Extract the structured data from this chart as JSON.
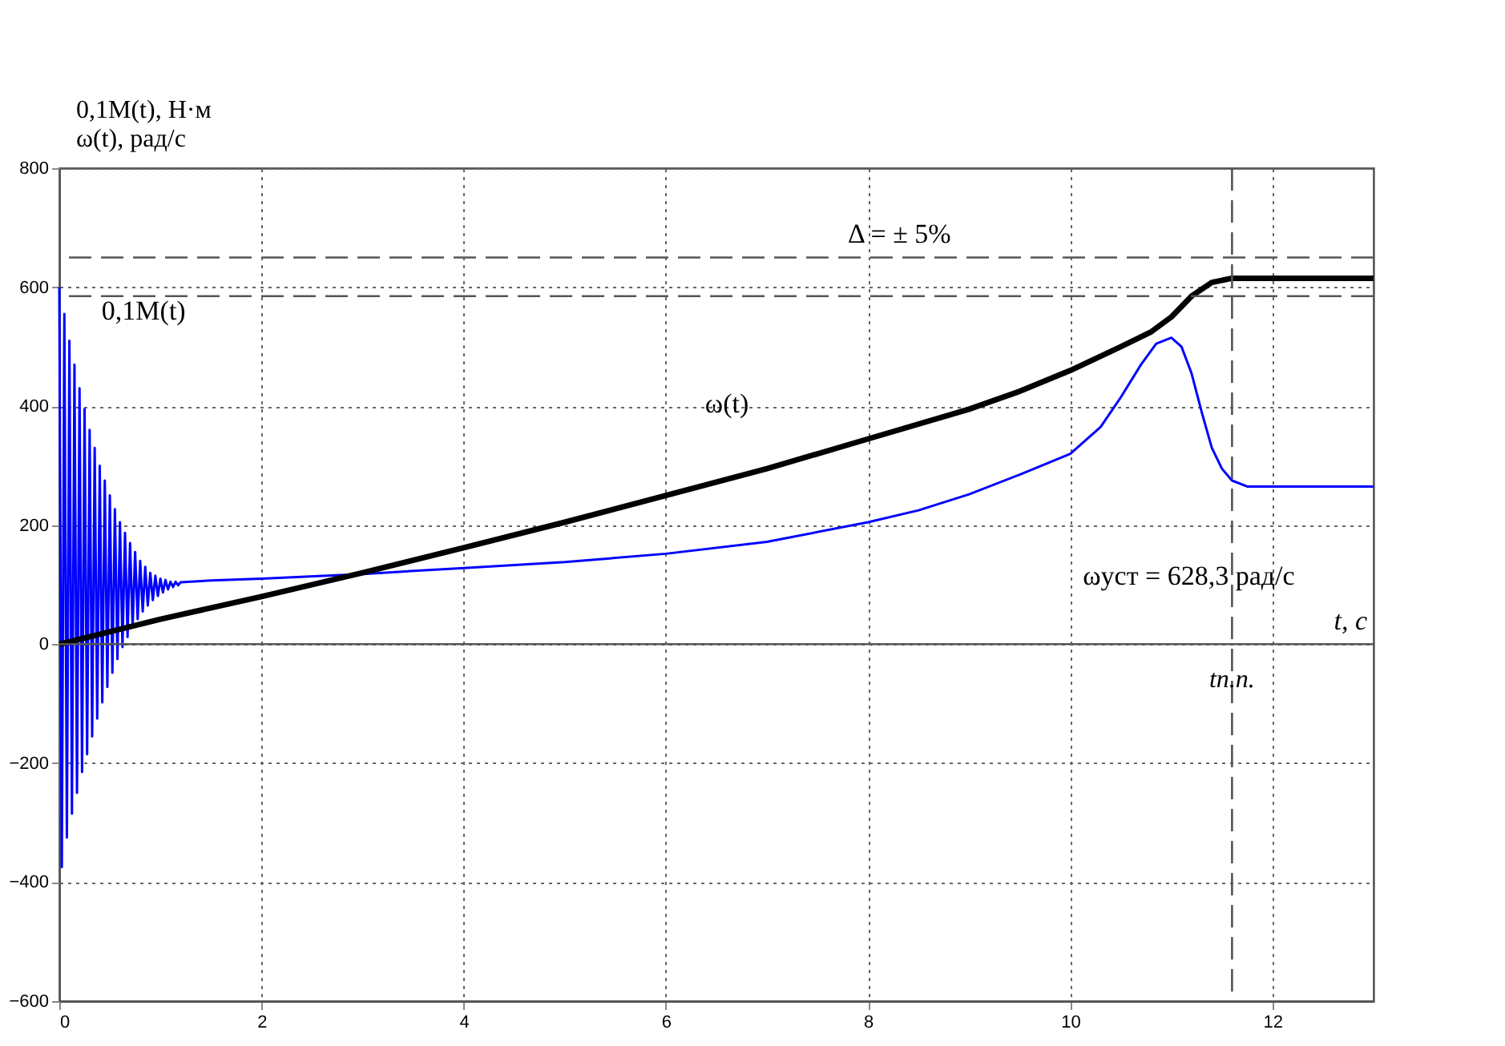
{
  "chart_data": {
    "type": "line",
    "ylabel": "0,1M(t), Н·м\nω(t), рад/с",
    "xlabel": "t, с",
    "xlim": [
      0,
      13
    ],
    "xticks": [
      0,
      2,
      4,
      6,
      8,
      10,
      12
    ],
    "ylim": [
      -600,
      800
    ],
    "yticks": [
      -600,
      -400,
      -200,
      0,
      200,
      400,
      600,
      800
    ],
    "grid": true,
    "marker": "none",
    "line_style": "solid",
    "series": [
      {
        "color": "#0000ff",
        "x": [
          0,
          0.025,
          0.05,
          0.075,
          0.1,
          0.125,
          0.15,
          0.175,
          0.2,
          0.225,
          0.25,
          0.275,
          0.3,
          0.325,
          0.35,
          0.375,
          0.4,
          0.425,
          0.45,
          0.475,
          0.5,
          0.525,
          0.55,
          0.575,
          0.6,
          0.625,
          0.65,
          0.675,
          0.7,
          0.725,
          0.75,
          0.775,
          0.8,
          0.825,
          0.85,
          0.875,
          0.9,
          0.925,
          0.95,
          0.975,
          1.0,
          1.025,
          1.05,
          1.075,
          1.1,
          1.125,
          1.15,
          1.175,
          1.2,
          1.3,
          1.5,
          2,
          3,
          4,
          5,
          6,
          7,
          8,
          8.5,
          9,
          9.5,
          10,
          10.3,
          10.5,
          10.7,
          10.85,
          11,
          11.1,
          11.2,
          11.3,
          11.4,
          11.5,
          11.6,
          11.75,
          12,
          13
        ],
        "values": [
          600,
          -375,
          555,
          -325,
          510,
          -285,
          470,
          -250,
          430,
          -215,
          395,
          -185,
          360,
          -155,
          330,
          -125,
          300,
          -98,
          275,
          -72,
          250,
          -48,
          227,
          -25,
          205,
          -5,
          187,
          12,
          170,
          28,
          155,
          42,
          140,
          55,
          130,
          65,
          120,
          74,
          115,
          81,
          110,
          87,
          108,
          92,
          105,
          96,
          105,
          99,
          104,
          105,
          107,
          110,
          118,
          128,
          138,
          152,
          172,
          205,
          225,
          252,
          285,
          320,
          365,
          415,
          470,
          505,
          515,
          500,
          455,
          390,
          330,
          295,
          275,
          265,
          265,
          265
        ]
      },
      {
        "color": "#000000",
        "x": [
          0,
          1,
          2,
          3,
          4,
          5,
          6,
          7,
          8,
          9,
          9.5,
          10,
          10.5,
          10.8,
          11,
          11.2,
          11.4,
          11.6,
          12,
          13
        ],
        "values": [
          0,
          42,
          80,
          120,
          162,
          205,
          250,
          295,
          345,
          395,
          425,
          460,
          500,
          525,
          550,
          585,
          608,
          615,
          615,
          615
        ]
      }
    ],
    "ref_lines": [
      {
        "axis": "y",
        "value": 0,
        "color": "#555555",
        "line_style": "solid"
      },
      {
        "axis": "y",
        "value": 650,
        "color": "#555555",
        "line_style": "dashed",
        "label": "Δ = ± 5%"
      },
      {
        "axis": "y",
        "value": 585,
        "color": "#555555",
        "line_style": "dashed"
      },
      {
        "axis": "x",
        "value": 11.6,
        "color": "#555555",
        "line_style": "dashed",
        "label": "tп.п."
      }
    ],
    "annotations": [
      {
        "text": "0,1M(t)",
        "x": 0.2,
        "y": 430
      },
      {
        "text": "ω(t)",
        "x": 7,
        "y": 295
      },
      "ωуст = 628,3 рад/с"
    ]
  }
}
